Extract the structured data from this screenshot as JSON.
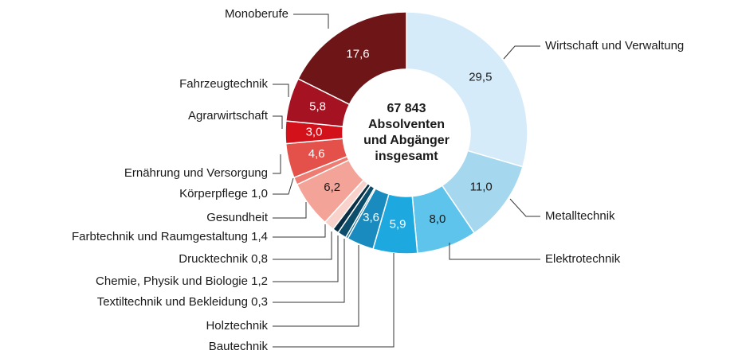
{
  "chart_data": {
    "type": "donut",
    "categories": [
      "Wirtschaft und Verwaltung",
      "Metalltechnik",
      "Elektrotechnik",
      "Bautechnik",
      "Holztechnik",
      "Textiltechnik und Bekleidung 0,3",
      "Chemie, Physik und Biologie 1,2",
      "Drucktechnik 0,8",
      "Farbtechnik und Raumgestaltung 1,4",
      "Gesundheit",
      "Körperpflege 1,0",
      "Ernährung und Versorgung",
      "Agrarwirtschaft",
      "Fahrzeugtechnik",
      "Monoberufe"
    ],
    "values": [
      29.5,
      11.0,
      8.0,
      5.9,
      3.6,
      0.3,
      1.2,
      0.8,
      1.4,
      6.2,
      1.0,
      4.6,
      3.0,
      5.8,
      17.6
    ],
    "value_labels": [
      "29,5",
      "11,0",
      "8,0",
      "5,9",
      "3,6",
      null,
      null,
      null,
      null,
      "6,2",
      null,
      "4,6",
      "3,0",
      "5,8",
      "17,6"
    ],
    "colors": [
      "#d6ebfa",
      "#a5d8ee",
      "#5ec4ec",
      "#1ea8e0",
      "#1a8bbf",
      "#106a91",
      "#0c4e6c",
      "#082f44",
      "#f9d2cb",
      "#f4a398",
      "#ef7c72",
      "#e3514a",
      "#d3111a",
      "#a51221",
      "#6e1518"
    ],
    "center_label": [
      "67 843",
      "Absolventen",
      "und Abgänger",
      "insgesamt"
    ]
  }
}
